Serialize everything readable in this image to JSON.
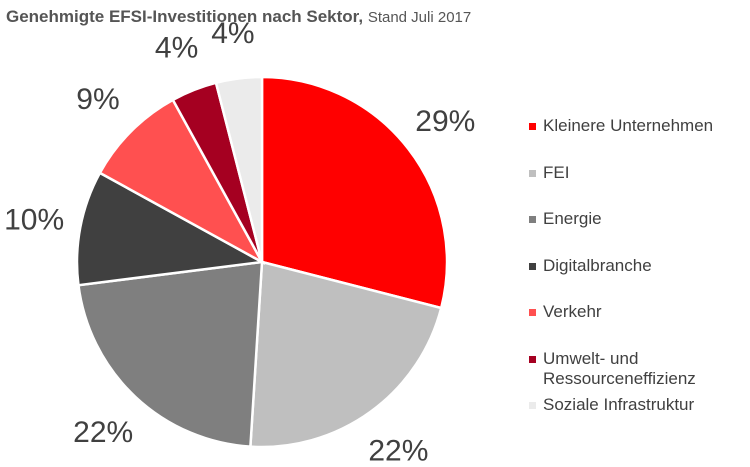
{
  "chart_data": {
    "type": "pie",
    "title": "Genehmigte EFSI-Investitionen nach Sektor,",
    "subtitle": "Stand Juli 2017",
    "legend_position": "right",
    "slices": [
      {
        "label": "Kleinere Unternehmen",
        "value": 29,
        "value_label": "29%",
        "color": "#FF0000"
      },
      {
        "label": "FEI",
        "value": 22,
        "value_label": "22%",
        "color": "#BFBFBF"
      },
      {
        "label": "Energie",
        "value": 22,
        "value_label": "22%",
        "color": "#7F7F7F"
      },
      {
        "label": "Digitalbranche",
        "value": 10,
        "value_label": "10%",
        "color": "#404040"
      },
      {
        "label": "Verkehr",
        "value": 9,
        "value_label": "9%",
        "color": "#FF5050"
      },
      {
        "label": "Umwelt- und Ressourceneffizienz",
        "value": 4,
        "value_label": "4%",
        "color": "#A50021"
      },
      {
        "label": "Soziale Infrastruktur",
        "value": 4,
        "value_label": "4%",
        "color": "#EBEBEB"
      }
    ]
  }
}
